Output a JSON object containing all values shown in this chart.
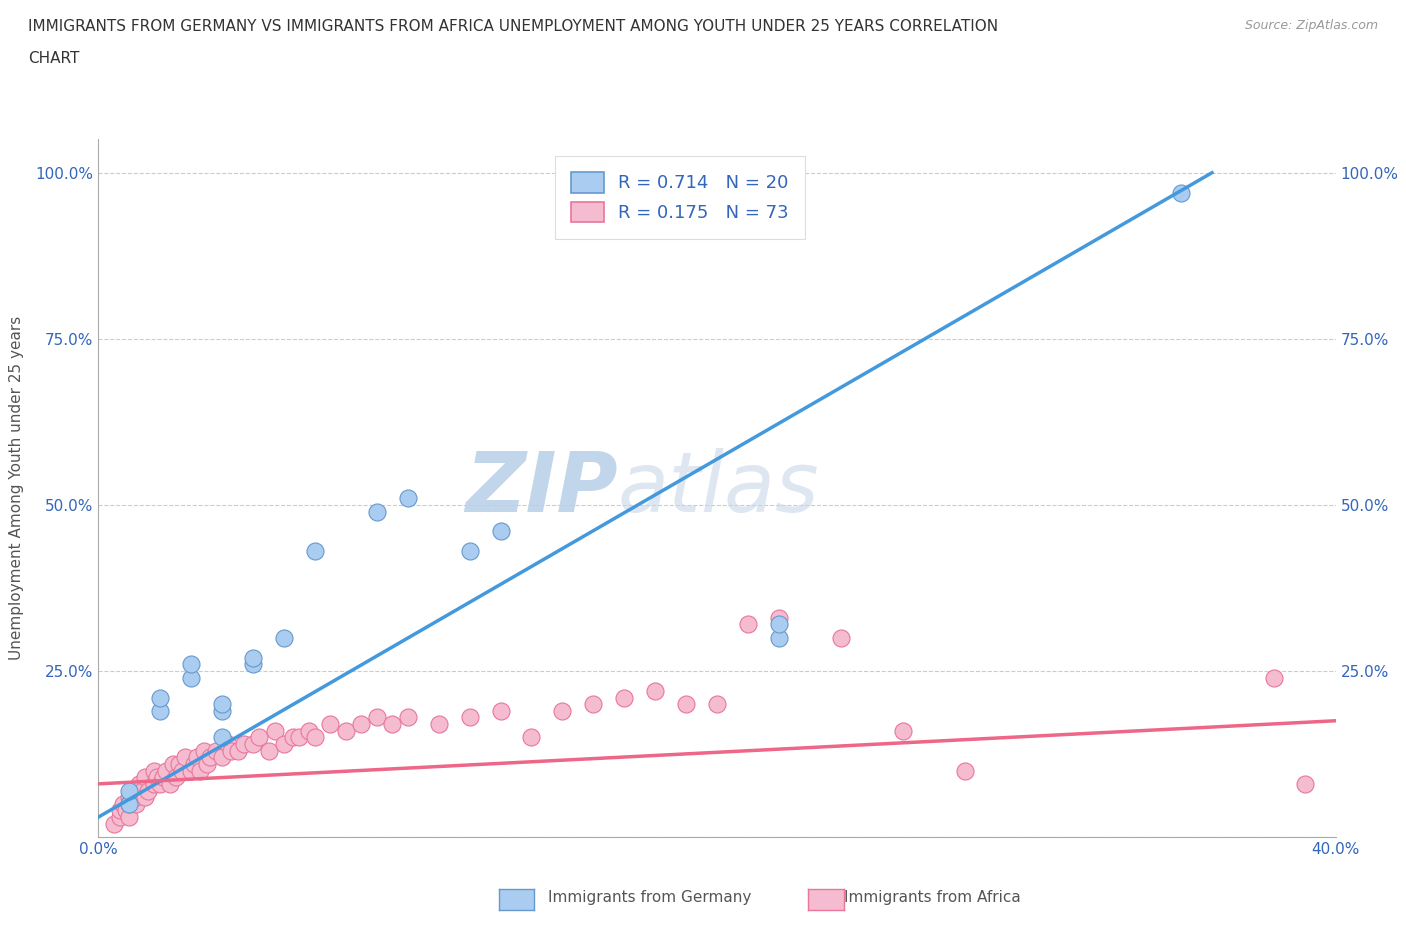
{
  "title_line1": "IMMIGRANTS FROM GERMANY VS IMMIGRANTS FROM AFRICA UNEMPLOYMENT AMONG YOUTH UNDER 25 YEARS CORRELATION",
  "title_line2": "CHART",
  "source": "Source: ZipAtlas.com",
  "ylabel": "Unemployment Among Youth under 25 years",
  "xlim": [
    0.0,
    0.4
  ],
  "ylim": [
    0.0,
    1.05
  ],
  "xticks": [
    0.0,
    0.05,
    0.1,
    0.15,
    0.2,
    0.25,
    0.3,
    0.35,
    0.4
  ],
  "yticks": [
    0.0,
    0.25,
    0.5,
    0.75,
    1.0
  ],
  "germany_color": "#aaccf0",
  "africa_color": "#f5bbd0",
  "germany_edge_color": "#6699cc",
  "africa_edge_color": "#e87799",
  "germany_line_color": "#4499dd",
  "africa_line_color": "#ee6688",
  "R_germany": 0.714,
  "N_germany": 20,
  "R_africa": 0.175,
  "N_africa": 73,
  "text_color": "#3366bb",
  "background_color": "#ffffff",
  "watermark_color": "#dde8f5",
  "germany_trend_x0": 0.0,
  "germany_trend_y0": 0.03,
  "germany_trend_x1": 0.36,
  "germany_trend_y1": 1.0,
  "africa_trend_x0": 0.0,
  "africa_trend_y0": 0.08,
  "africa_trend_x1": 0.4,
  "africa_trend_y1": 0.175,
  "germany_x": [
    0.01,
    0.01,
    0.02,
    0.02,
    0.03,
    0.03,
    0.04,
    0.04,
    0.05,
    0.05,
    0.06,
    0.07,
    0.09,
    0.1,
    0.04,
    0.12,
    0.13,
    0.22,
    0.22,
    0.35
  ],
  "germany_y": [
    0.05,
    0.07,
    0.19,
    0.21,
    0.24,
    0.26,
    0.19,
    0.2,
    0.26,
    0.27,
    0.3,
    0.43,
    0.49,
    0.51,
    0.15,
    0.43,
    0.46,
    0.3,
    0.32,
    0.97
  ],
  "africa_x": [
    0.005,
    0.007,
    0.007,
    0.008,
    0.009,
    0.01,
    0.01,
    0.01,
    0.011,
    0.012,
    0.012,
    0.013,
    0.014,
    0.015,
    0.015,
    0.016,
    0.018,
    0.018,
    0.019,
    0.02,
    0.021,
    0.022,
    0.023,
    0.024,
    0.025,
    0.026,
    0.027,
    0.028,
    0.03,
    0.031,
    0.032,
    0.033,
    0.034,
    0.035,
    0.036,
    0.038,
    0.04,
    0.042,
    0.043,
    0.045,
    0.047,
    0.05,
    0.052,
    0.055,
    0.057,
    0.06,
    0.063,
    0.065,
    0.068,
    0.07,
    0.075,
    0.08,
    0.085,
    0.09,
    0.095,
    0.1,
    0.11,
    0.12,
    0.13,
    0.14,
    0.15,
    0.16,
    0.17,
    0.18,
    0.19,
    0.2,
    0.21,
    0.22,
    0.24,
    0.26,
    0.28,
    0.38,
    0.39
  ],
  "africa_y": [
    0.02,
    0.03,
    0.04,
    0.05,
    0.04,
    0.06,
    0.03,
    0.05,
    0.07,
    0.05,
    0.06,
    0.08,
    0.07,
    0.06,
    0.09,
    0.07,
    0.08,
    0.1,
    0.09,
    0.08,
    0.09,
    0.1,
    0.08,
    0.11,
    0.09,
    0.11,
    0.1,
    0.12,
    0.1,
    0.11,
    0.12,
    0.1,
    0.13,
    0.11,
    0.12,
    0.13,
    0.12,
    0.14,
    0.13,
    0.13,
    0.14,
    0.14,
    0.15,
    0.13,
    0.16,
    0.14,
    0.15,
    0.15,
    0.16,
    0.15,
    0.17,
    0.16,
    0.17,
    0.18,
    0.17,
    0.18,
    0.17,
    0.18,
    0.19,
    0.15,
    0.19,
    0.2,
    0.21,
    0.22,
    0.2,
    0.2,
    0.32,
    0.33,
    0.3,
    0.16,
    0.1,
    0.24,
    0.08
  ]
}
